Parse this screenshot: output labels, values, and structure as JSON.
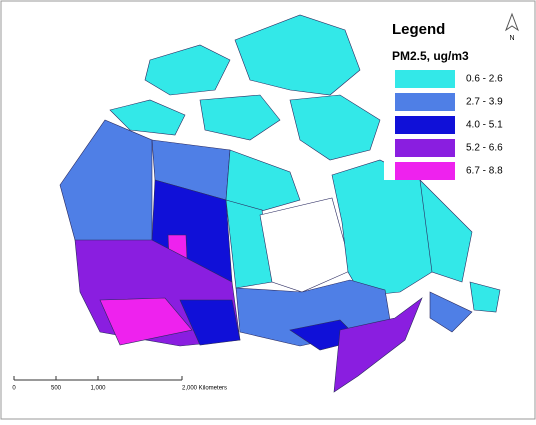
{
  "legend": {
    "title": "Legend",
    "subtitle": "PM2.5, ug/m3",
    "classes": [
      {
        "label": "0.6 - 2.6",
        "color": "#33e8e8"
      },
      {
        "label": "2.7 - 3.9",
        "color": "#4f7fe6"
      },
      {
        "label": "4.0 - 5.1",
        "color": "#1010d8"
      },
      {
        "label": "5.2 - 6.6",
        "color": "#8a1ee0"
      },
      {
        "label": "6.7 - 8.8",
        "color": "#ee22ee"
      }
    ]
  },
  "north_arrow": "N",
  "scale_bar": [
    "0",
    "500",
    "1,000",
    "2,000 Kilometers"
  ]
}
